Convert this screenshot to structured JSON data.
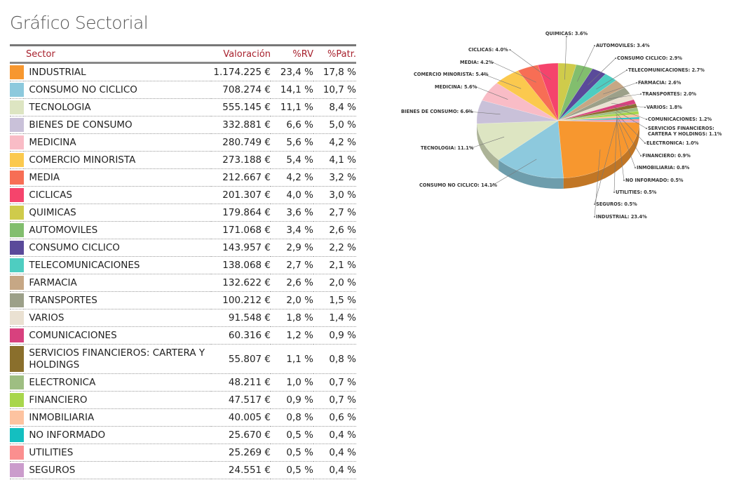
{
  "title": "Gráfico Sectorial",
  "table": {
    "headers": {
      "sector": "Sector",
      "valoracion": "Valoración",
      "rv": "%RV",
      "patr": "%Patr."
    },
    "rows": [
      {
        "sector": "INDUSTRIAL",
        "valoracion": "1.174.225 €",
        "rv": "23,4 %",
        "patr": "17,8 %",
        "color": "#F7972F"
      },
      {
        "sector": "CONSUMO NO CICLICO",
        "valoracion": "708.274 €",
        "rv": "14,1 %",
        "patr": "10,7 %",
        "color": "#8DC9DD"
      },
      {
        "sector": "TECNOLOGIA",
        "valoracion": "555.145 €",
        "rv": "11,1 %",
        "patr": "8,4 %",
        "color": "#DDE5C2"
      },
      {
        "sector": "BIENES DE CONSUMO",
        "valoracion": "332.881 €",
        "rv": "6,6 %",
        "patr": "5,0 %",
        "color": "#C9C1D9"
      },
      {
        "sector": "MEDICINA",
        "valoracion": "280.749 €",
        "rv": "5,6 %",
        "patr": "4,2 %",
        "color": "#F9BCC6"
      },
      {
        "sector": "COMERCIO MINORISTA",
        "valoracion": "273.188 €",
        "rv": "5,4 %",
        "patr": "4,1 %",
        "color": "#FBC94E"
      },
      {
        "sector": "MEDIA",
        "valoracion": "212.667 €",
        "rv": "4,2 %",
        "patr": "3,2 %",
        "color": "#F76E55"
      },
      {
        "sector": "CICLICAS",
        "valoracion": "201.307 €",
        "rv": "4,0 %",
        "patr": "3,0 %",
        "color": "#F5446C"
      },
      {
        "sector": "QUIMICAS",
        "valoracion": "179.864 €",
        "rv": "3,6 %",
        "patr": "2,7 %",
        "color": "#CFCB4B"
      },
      {
        "sector": "AUTOMOVILES",
        "valoracion": "171.068 €",
        "rv": "3,4 %",
        "patr": "2,6 %",
        "color": "#82BE6E"
      },
      {
        "sector": "CONSUMO CICLICO",
        "valoracion": "143.957 €",
        "rv": "2,9 %",
        "patr": "2,2 %",
        "color": "#5A4A9A"
      },
      {
        "sector": "TELECOMUNICACIONES",
        "valoracion": "138.068 €",
        "rv": "2,7 %",
        "patr": "2,1 %",
        "color": "#4ECDC1"
      },
      {
        "sector": "FARMACIA",
        "valoracion": "132.622 €",
        "rv": "2,6 %",
        "patr": "2,0 %",
        "color": "#C6A785"
      },
      {
        "sector": "TRANSPORTES",
        "valoracion": "100.212 €",
        "rv": "2,0 %",
        "patr": "1,5 %",
        "color": "#9CA089"
      },
      {
        "sector": "VARIOS",
        "valoracion": "91.548 €",
        "rv": "1,8 %",
        "patr": "1,4 %",
        "color": "#EAE1D2"
      },
      {
        "sector": "COMUNICACIONES",
        "valoracion": "60.316 €",
        "rv": "1,2 %",
        "patr": "0,9 %",
        "color": "#D8417E"
      },
      {
        "sector": "SERVICIOS FINANCIEROS: CARTERA Y HOLDINGS",
        "valoracion": "55.807 €",
        "rv": "1,1 %",
        "patr": "0,8 %",
        "color": "#8A6F2C"
      },
      {
        "sector": "ELECTRONICA",
        "valoracion": "48.211 €",
        "rv": "1,0 %",
        "patr": "0,7 %",
        "color": "#9EBE82"
      },
      {
        "sector": "FINANCIERO",
        "valoracion": "47.517 €",
        "rv": "0,9 %",
        "patr": "0,7 %",
        "color": "#A8D64C"
      },
      {
        "sector": "INMOBILIARIA",
        "valoracion": "40.005 €",
        "rv": "0,8 %",
        "patr": "0,6 %",
        "color": "#FDC3A0"
      },
      {
        "sector": "NO INFORMADO",
        "valoracion": "25.670 €",
        "rv": "0,5 %",
        "patr": "0,4 %",
        "color": "#14BFC0"
      },
      {
        "sector": "UTILITIES",
        "valoracion": "25.269 €",
        "rv": "0,5 %",
        "patr": "0,4 %",
        "color": "#FB8F8F"
      },
      {
        "sector": "SEGUROS",
        "valoracion": "24.551 €",
        "rv": "0,5 %",
        "patr": "0,4 %",
        "color": "#CB9CCC"
      }
    ]
  },
  "chart_data": {
    "type": "pie",
    "title": "",
    "categories": [
      "INDUSTRIAL",
      "CONSUMO NO CICLICO",
      "TECNOLOGIA",
      "BIENES DE CONSUMO",
      "MEDICINA",
      "COMERCIO MINORISTA",
      "MEDIA",
      "CICLICAS",
      "QUIMICAS",
      "AUTOMOVILES",
      "CONSUMO CICLICO",
      "TELECOMUNICACIONES",
      "FARMACIA",
      "TRANSPORTES",
      "VARIOS",
      "COMUNICACIONES",
      "SERVICIOS FINANCIEROS: CARTERA Y HOLDINGS",
      "ELECTRONICA",
      "FINANCIERO",
      "INMOBILIARIA",
      "NO INFORMADO",
      "UTILITIES",
      "SEGUROS"
    ],
    "values": [
      23.4,
      14.1,
      11.1,
      6.6,
      5.6,
      5.4,
      4.2,
      4.0,
      3.6,
      3.4,
      2.9,
      2.7,
      2.6,
      2.0,
      1.8,
      1.2,
      1.1,
      1.0,
      0.9,
      0.8,
      0.5,
      0.5,
      0.5
    ],
    "labels": [
      "INDUSTRIAL: 23.4%",
      "CONSUMO NO CICLICO: 14.1%",
      "TECNOLOGIA: 11.1%",
      "BIENES DE CONSUMO: 6.6%",
      "MEDICINA: 5.6%",
      "COMERCIO MINORISTA: 5.4%",
      "MEDIA: 4.2%",
      "CICLICAS: 4.0%",
      "QUIMICAS: 3.6%",
      "AUTOMOVILES: 3.4%",
      "CONSUMO CICLICO: 2.9%",
      "TELECOMUNICACIONES: 2.7%",
      "FARMACIA: 2.6%",
      "TRANSPORTES: 2.0%",
      "VARIOS: 1.8%",
      "COMUNICACIONES: 1.2%",
      "SERVICIOS FINANCIEROS:",
      "ELECTRONICA: 1.0%",
      "FINANCIERO: 0.9%",
      "INMOBILIARIA: 0.8%",
      "NO INFORMADO: 0.5%",
      "UTILITIES: 0.5%",
      "SEGUROS: 0.5%"
    ],
    "label_line2": {
      "16": "CARTERA Y HOLDINGS: 1.1%"
    },
    "colors": [
      "#F7972F",
      "#8DC9DD",
      "#DDE5C2",
      "#C9C1D9",
      "#F9BCC6",
      "#FBC94E",
      "#F76E55",
      "#F5446C",
      "#CFCB4B",
      "#82BE6E",
      "#5A4A9A",
      "#4ECDC1",
      "#C6A785",
      "#9CA089",
      "#EAE1D2",
      "#D8417E",
      "#8A6F2C",
      "#9EBE82",
      "#A8D64C",
      "#FDC3A0",
      "#14BFC0",
      "#FB8F8F",
      "#CB9CCC"
    ]
  }
}
